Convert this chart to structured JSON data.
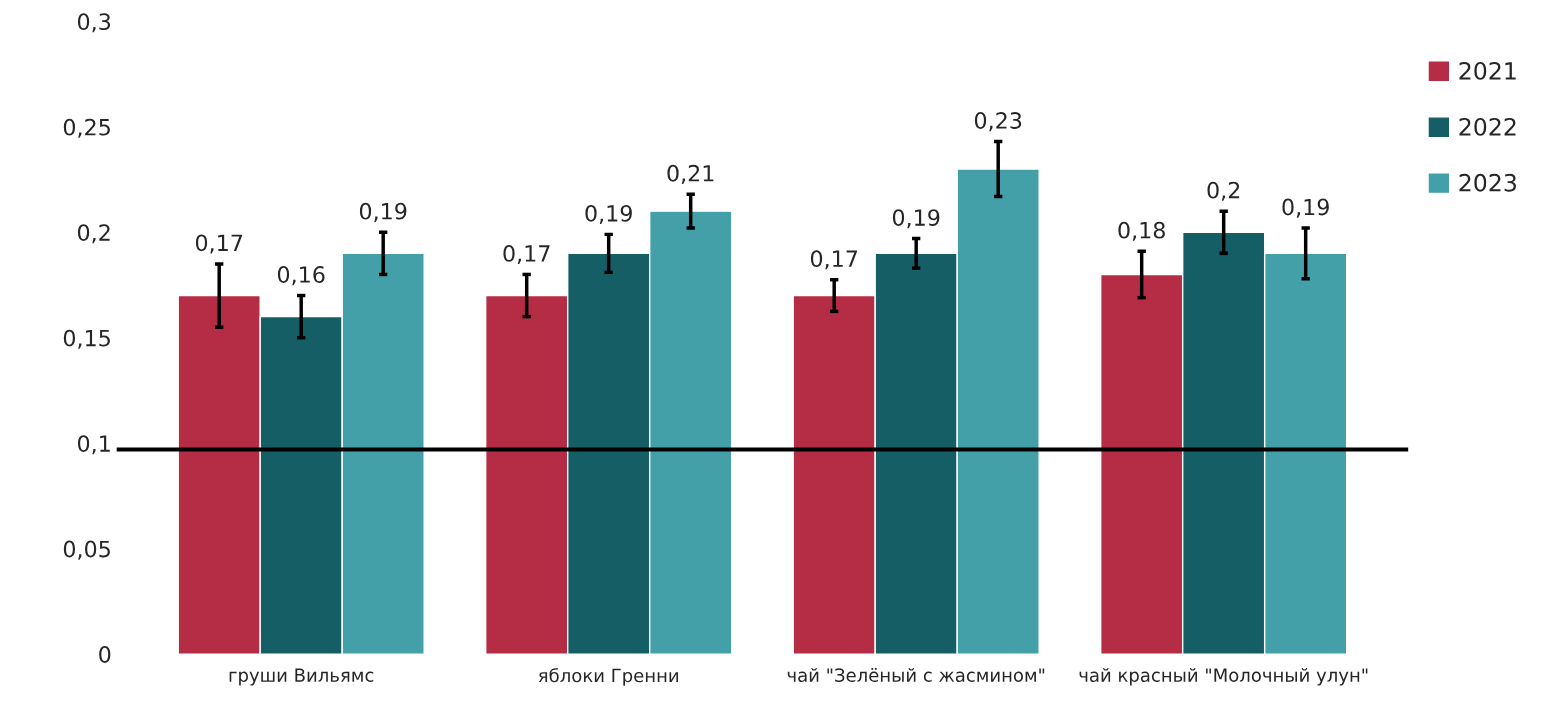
{
  "chart_data": {
    "type": "bar",
    "categories": [
      "груши Вильямс",
      "яблоки Гренни",
      "чай \"Зелёный с жасмином\"",
      "чай красный \"Молочный улун\""
    ],
    "series": [
      {
        "name": "2021",
        "color": "#b52d45",
        "values": [
          0.17,
          0.17,
          0.17,
          0.18
        ],
        "errors": [
          0.015,
          0.01,
          0.0075,
          0.011
        ],
        "value_labels": [
          "0,17",
          "0,17",
          "0,17",
          "0,18"
        ]
      },
      {
        "name": "2022",
        "color": "#165e66",
        "values": [
          0.16,
          0.19,
          0.19,
          0.2
        ],
        "errors": [
          0.01,
          0.009,
          0.007,
          0.01
        ],
        "value_labels": [
          "0,16",
          "0,19",
          "0,19",
          "0,2"
        ]
      },
      {
        "name": "2023",
        "color": "#44a0a8",
        "values": [
          0.19,
          0.21,
          0.23,
          0.19
        ],
        "errors": [
          0.01,
          0.008,
          0.013,
          0.012
        ],
        "value_labels": [
          "0,19",
          "0,21",
          "0,23",
          "0,19"
        ]
      }
    ],
    "ylim": [
      0,
      0.3
    ],
    "yticks": [
      {
        "value": 0,
        "label": "0"
      },
      {
        "value": 0.05,
        "label": "0,05"
      },
      {
        "value": 0.1,
        "label": "0,1"
      },
      {
        "value": 0.15,
        "label": "0,15"
      },
      {
        "value": 0.2,
        "label": "0,2"
      },
      {
        "value": 0.25,
        "label": "0,25"
      },
      {
        "value": 0.3,
        "label": "0,3"
      }
    ],
    "ref_lines": [
      {
        "axis": "y",
        "value": 0.097,
        "color": "#000000"
      }
    ],
    "grid": false,
    "legend": "top right"
  }
}
